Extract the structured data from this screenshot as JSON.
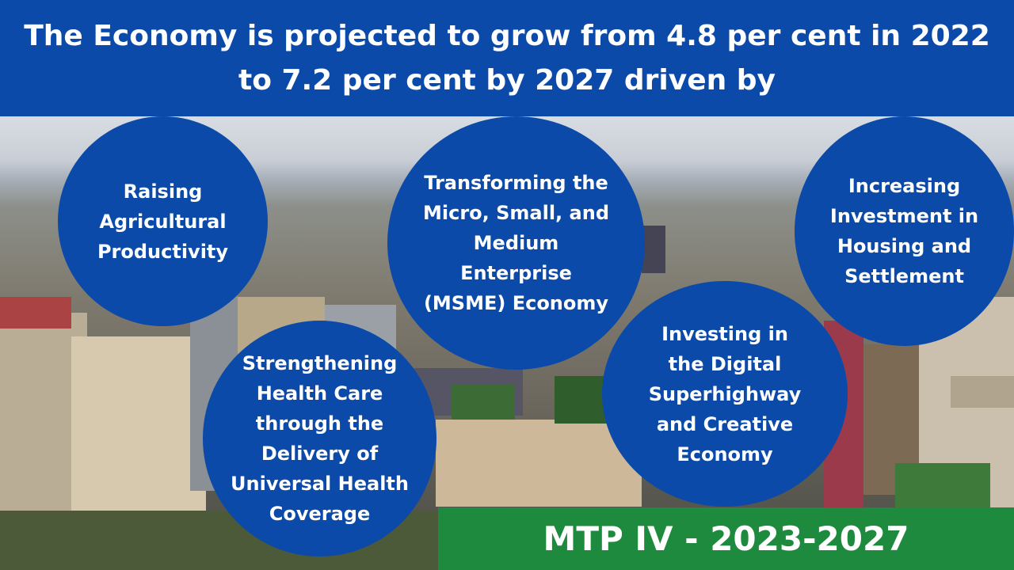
{
  "header": {
    "title": "The Economy is projected to grow from 4.8 per cent in 2022 to 7.2 per cent by 2027 driven by"
  },
  "pillars": [
    {
      "label": "Raising Agricultural Productivity"
    },
    {
      "label": "Transforming the Micro, Small, and Medium Enterprise (MSME) Economy"
    },
    {
      "label": "Increasing Investment in Housing and Settlement"
    },
    {
      "label": "Strengthening Health Care through the Delivery of Universal Health Coverage"
    },
    {
      "label": "Investing in the Digital Superhighway and Creative Economy"
    }
  ],
  "footer": {
    "label": "MTP IV - 2023-2027"
  },
  "colors": {
    "banner_blue": "#0b4aa8",
    "footer_green": "#1e8a3e",
    "text": "#ffffff"
  }
}
